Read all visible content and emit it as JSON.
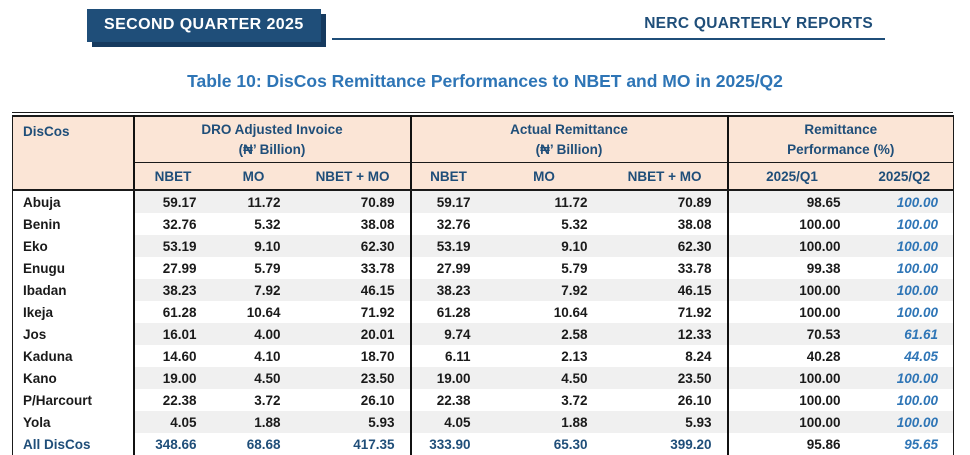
{
  "page": {
    "quarter_badge": "SECOND QUARTER 2025",
    "report_header": "NERC QUARTERLY REPORTS",
    "title": "Table 10: DisCos Remittance Performances to NBET and MO in 2025/Q2"
  },
  "colors": {
    "navy": "#1F4E79",
    "accent_blue": "#2E75B6",
    "header_peach": "#FBE5D6",
    "row_stripe": "#F0F0F0"
  },
  "table": {
    "disco_header": "DisCos",
    "groups": [
      {
        "label": "DRO Adjusted Invoice",
        "sublabel": "(₦’ Billion)",
        "cols": [
          "NBET",
          "MO",
          "NBET + MO"
        ]
      },
      {
        "label": "Actual Remittance",
        "sublabel": "(₦’ Billion)",
        "cols": [
          "NBET",
          "MO",
          "NBET + MO"
        ]
      },
      {
        "label": "Remittance",
        "sublabel": "Performance (%)",
        "cols": [
          "2025/Q1",
          "2025/Q2"
        ]
      }
    ],
    "rows": [
      {
        "disco": "Abuja",
        "values": [
          "59.17",
          "11.72",
          "70.89",
          "59.17",
          "11.72",
          "70.89",
          "98.65",
          "100.00"
        ],
        "total": false
      },
      {
        "disco": "Benin",
        "values": [
          "32.76",
          "5.32",
          "38.08",
          "32.76",
          "5.32",
          "38.08",
          "100.00",
          "100.00"
        ],
        "total": false
      },
      {
        "disco": "Eko",
        "values": [
          "53.19",
          "9.10",
          "62.30",
          "53.19",
          "9.10",
          "62.30",
          "100.00",
          "100.00"
        ],
        "total": false
      },
      {
        "disco": "Enugu",
        "values": [
          "27.99",
          "5.79",
          "33.78",
          "27.99",
          "5.79",
          "33.78",
          "99.38",
          "100.00"
        ],
        "total": false
      },
      {
        "disco": "Ibadan",
        "values": [
          "38.23",
          "7.92",
          "46.15",
          "38.23",
          "7.92",
          "46.15",
          "100.00",
          "100.00"
        ],
        "total": false
      },
      {
        "disco": "Ikeja",
        "values": [
          "61.28",
          "10.64",
          "71.92",
          "61.28",
          "10.64",
          "71.92",
          "100.00",
          "100.00"
        ],
        "total": false
      },
      {
        "disco": "Jos",
        "values": [
          "16.01",
          "4.00",
          "20.01",
          "9.74",
          "2.58",
          "12.33",
          "70.53",
          "61.61"
        ],
        "total": false
      },
      {
        "disco": "Kaduna",
        "values": [
          "14.60",
          "4.10",
          "18.70",
          "6.11",
          "2.13",
          "8.24",
          "40.28",
          "44.05"
        ],
        "total": false
      },
      {
        "disco": "Kano",
        "values": [
          "19.00",
          "4.50",
          "23.50",
          "19.00",
          "4.50",
          "23.50",
          "100.00",
          "100.00"
        ],
        "total": false
      },
      {
        "disco": "P/Harcourt",
        "values": [
          "22.38",
          "3.72",
          "26.10",
          "22.38",
          "3.72",
          "26.10",
          "100.00",
          "100.00"
        ],
        "total": false
      },
      {
        "disco": "Yola",
        "values": [
          "4.05",
          "1.88",
          "5.93",
          "4.05",
          "1.88",
          "5.93",
          "100.00",
          "100.00"
        ],
        "total": false
      },
      {
        "disco": "All DisCos",
        "values": [
          "348.66",
          "68.68",
          "417.35",
          "333.90",
          "65.30",
          "399.20",
          "95.86",
          "95.65"
        ],
        "total": true
      }
    ]
  }
}
